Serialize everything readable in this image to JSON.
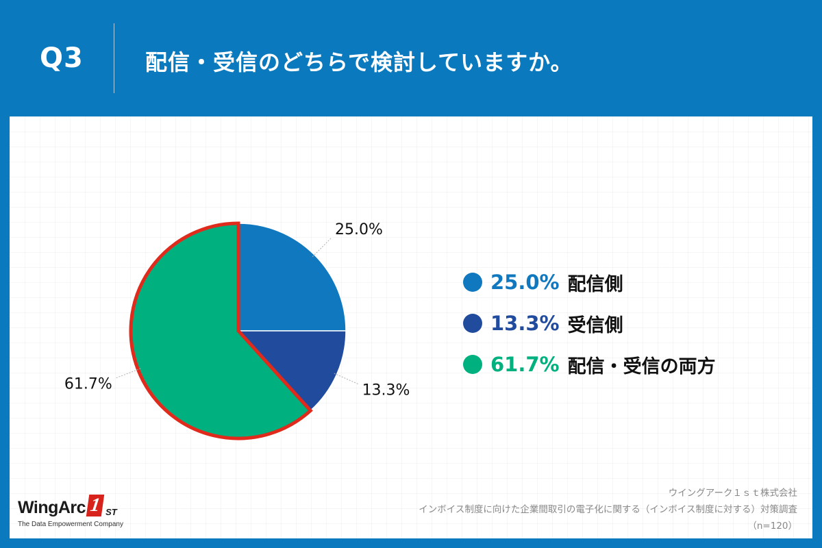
{
  "header": {
    "q_label": "Q3",
    "title": "配信・受信のどちらで検討していますか。"
  },
  "colors": {
    "background": "#0A79BD",
    "panel": "#FFFFFF",
    "highlight_outline": "#E02A1B"
  },
  "chart_data": {
    "type": "pie",
    "title": "",
    "slices": [
      {
        "label": "配信側",
        "value": 25.0,
        "value_label": "25.0%",
        "color": "#0F78BF"
      },
      {
        "label": "受信側",
        "value": 13.3,
        "value_label": "13.3%",
        "color": "#214C9E"
      },
      {
        "label": "配信・受信の両方",
        "value": 61.7,
        "value_label": "61.7%",
        "color": "#00B07F",
        "highlighted": true
      }
    ],
    "start_angle": "12 o'clock",
    "direction": "clockwise",
    "legend_placement": "right"
  },
  "footer": {
    "logo": {
      "name": "WingArc",
      "mark_number": "1",
      "mark_suffix": "ST",
      "tagline": "The Data Empowerment Company"
    },
    "source": {
      "company": "ウイングアーク１ｓｔ株式会社",
      "survey": "インボイス制度に向けた企業間取引の電子化に関する（インボイス制度に対する）対策調査",
      "sample": "（n=120）"
    }
  }
}
